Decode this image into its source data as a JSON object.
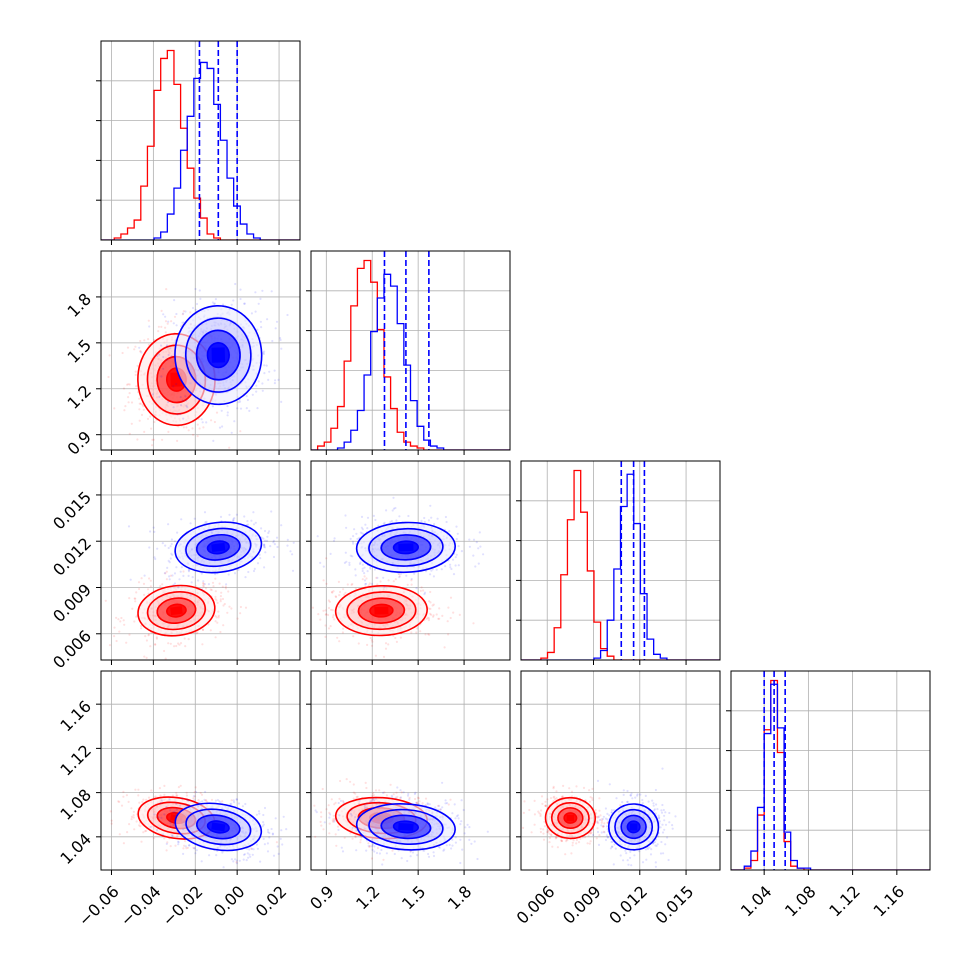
{
  "colors": {
    "series_a": "#ff0000",
    "series_b": "#0000ff",
    "grid": "#b0b0b0",
    "axes": "#000000"
  },
  "chart_data": {
    "type": "corner",
    "grid": true,
    "legend": "none",
    "n_params": 4,
    "params": [
      {
        "range": [
          -0.065,
          0.03
        ],
        "ticks": [
          "−0.06",
          "−0.04",
          "−0.02",
          "0.00",
          "0.02"
        ],
        "tick_values": [
          -0.06,
          -0.04,
          -0.02,
          0.0,
          0.02
        ]
      },
      {
        "range": [
          0.8,
          2.1
        ],
        "ticks": [
          "0.9",
          "1.2",
          "1.5",
          "1.8"
        ],
        "tick_values": [
          0.9,
          1.2,
          1.5,
          1.8
        ]
      },
      {
        "range": [
          0.0043,
          0.0172
        ],
        "ticks": [
          "0.006",
          "0.009",
          "0.012",
          "0.015"
        ],
        "tick_values": [
          0.006,
          0.009,
          0.012,
          0.015
        ]
      },
      {
        "range": [
          1.01,
          1.19
        ],
        "ticks": [
          "1.04",
          "1.08",
          "1.12",
          "1.16"
        ],
        "tick_values": [
          1.04,
          1.08,
          1.12,
          1.16
        ]
      }
    ],
    "series": [
      {
        "color": "#ff0000",
        "mean": [
          -0.029,
          1.26,
          0.0075,
          1.057
        ],
        "std": [
          0.008,
          0.13,
          0.0007,
          0.008
        ],
        "hist": [
          {
            "edges": [
              -0.065,
              0.03
            ],
            "counts": [
              0,
              0,
              1,
              3,
              6,
              10,
              27,
              47,
              75,
              91,
              95,
              78,
              56,
              36,
              21,
              11,
              3,
              1,
              0,
              0,
              0,
              0,
              0,
              0,
              0,
              0,
              0,
              0,
              0,
              0
            ]
          },
          {
            "edges": [
              0.8,
              2.1
            ],
            "counts": [
              0,
              2,
              4,
              11,
              22,
              45,
              73,
              92,
              96,
              85,
              61,
              37,
              21,
              9,
              4,
              2,
              1,
              0,
              0,
              0,
              0,
              0,
              0,
              0,
              0,
              0,
              0,
              0,
              0,
              0
            ]
          },
          {
            "edges": [
              0.0043,
              0.0172
            ],
            "counts": [
              0,
              0,
              0,
              1,
              4,
              17,
              45,
              74,
              100,
              78,
              47,
              20,
              6,
              2,
              0,
              0,
              0,
              0,
              0,
              0,
              0,
              0,
              0,
              0,
              0,
              0,
              0,
              0,
              0,
              0
            ]
          },
          {
            "edges": [
              1.01,
              1.19
            ],
            "counts": [
              0,
              0,
              1,
              5,
              29,
              74,
              100,
              62,
              15,
              2,
              1,
              0,
              0,
              0,
              0,
              0,
              0,
              0,
              0,
              0,
              0,
              0,
              0,
              0,
              0,
              0,
              0,
              0,
              0,
              0
            ]
          }
        ]
      },
      {
        "color": "#0000ff",
        "mean": [
          -0.009,
          1.42,
          0.0116,
          1.049
        ],
        "std": [
          0.009,
          0.14,
          0.0007,
          0.009
        ],
        "quantiles": [
          [
            -0.018,
            -0.009,
            0.0
          ],
          [
            1.28,
            1.42,
            1.57
          ],
          [
            0.0108,
            0.0116,
            0.0123
          ],
          [
            1.04,
            1.049,
            1.059
          ]
        ],
        "hist": [
          {
            "edges": [
              -0.065,
              0.03
            ],
            "counts": [
              0,
              0,
              0,
              0,
              0,
              0,
              0,
              0,
              1,
              4,
              13,
              26,
              45,
              62,
              81,
              89,
              86,
              68,
              50,
              31,
              17,
              8,
              3,
              1,
              0,
              0,
              0,
              0,
              0,
              0
            ]
          },
          {
            "edges": [
              0.8,
              2.1
            ],
            "counts": [
              0,
              0,
              0,
              0,
              1,
              4,
              10,
              20,
              38,
              60,
              77,
              89,
              83,
              64,
              43,
              25,
              12,
              5,
              2,
              1,
              0,
              0,
              0,
              0,
              0,
              0,
              0,
              0,
              0,
              0
            ]
          },
          {
            "edges": [
              0.0043,
              0.0172
            ],
            "counts": [
              0,
              0,
              0,
              0,
              0,
              0,
              0,
              0,
              0,
              0,
              0,
              1,
              5,
              21,
              48,
              81,
              98,
              72,
              35,
              11,
              3,
              1,
              0,
              0,
              0,
              0,
              0,
              0,
              0,
              0
            ]
          },
          {
            "edges": [
              1.01,
              1.19
            ],
            "counts": [
              0,
              0,
              2,
              10,
              33,
              72,
              98,
              75,
              20,
              5,
              1,
              1,
              0,
              0,
              0,
              0,
              0,
              0,
              0,
              0,
              0,
              0,
              0,
              0,
              0,
              0,
              0,
              0,
              0,
              0
            ]
          }
        ]
      }
    ]
  }
}
